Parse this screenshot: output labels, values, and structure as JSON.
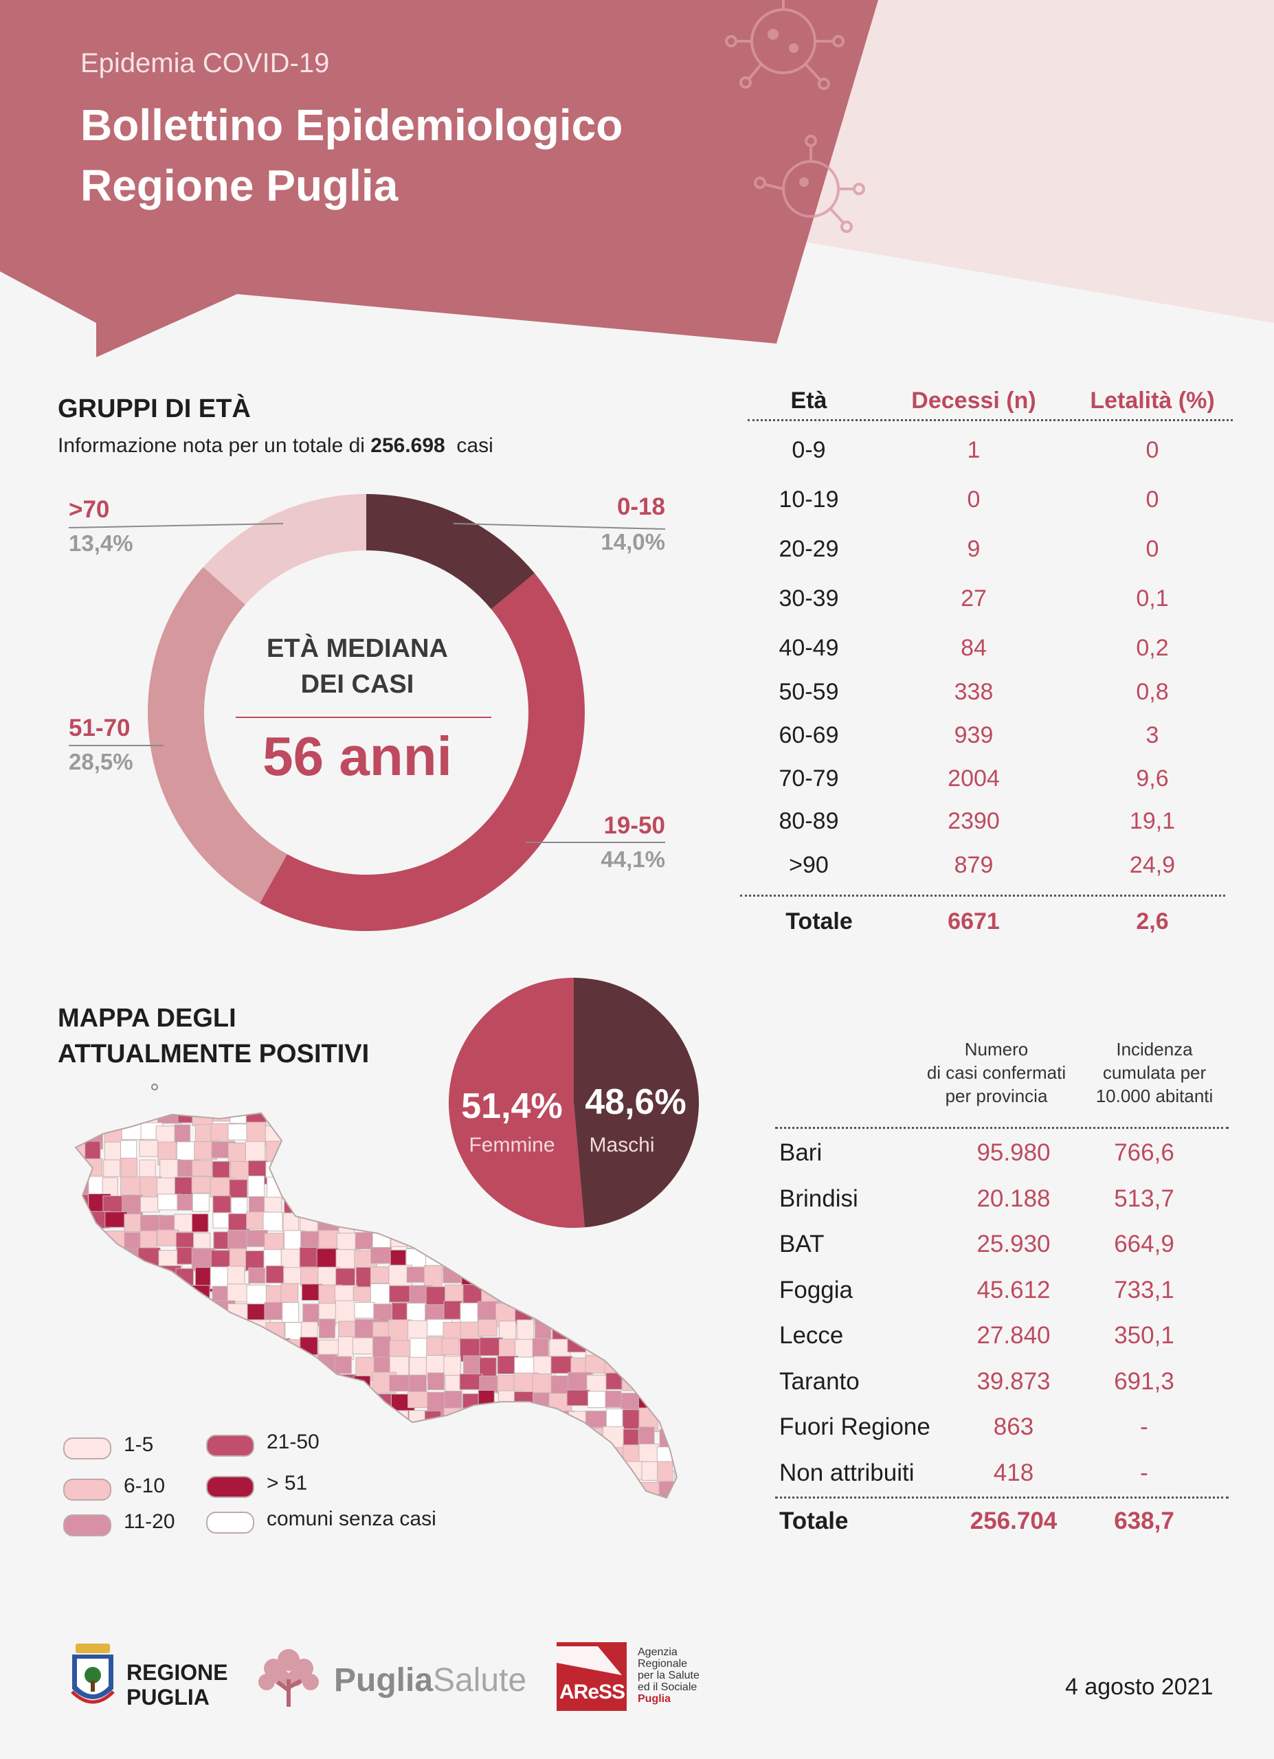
{
  "header": {
    "subtitle": "Epidemia COVID-19",
    "title_line1": "Bollettino Epidemiologico",
    "title_line2": "Regione Puglia"
  },
  "age_section": {
    "title": "GRUPPI DI ETÀ",
    "info_prefix": "Informazione nota per un totale di",
    "info_total": "256.698",
    "info_suffix": "casi",
    "center_title_1": "ETÀ MEDIANA",
    "center_title_2": "DEI CASI",
    "median_value": "56 anni"
  },
  "chart_data": {
    "type": "pie",
    "categories": [
      "0-18",
      "19-50",
      "51-70",
      ">70"
    ],
    "values": [
      14.0,
      44.1,
      28.5,
      13.4
    ],
    "value_labels": [
      "14,0%",
      "44,1%",
      "28,5%",
      "13,4%"
    ],
    "colors": [
      "#5e343a",
      "#bd4a5e",
      "#d4989d",
      "#ecc9cb"
    ]
  },
  "deaths_table": {
    "headers": [
      "Età",
      "Decessi (n)",
      "Letalità (%)"
    ],
    "rows": [
      {
        "age": "0-9",
        "deaths": "1",
        "lethality": "0"
      },
      {
        "age": "10-19",
        "deaths": "0",
        "lethality": "0"
      },
      {
        "age": "20-29",
        "deaths": "9",
        "lethality": "0"
      },
      {
        "age": "30-39",
        "deaths": "27",
        "lethality": "0,1"
      },
      {
        "age": "40-49",
        "deaths": "84",
        "lethality": "0,2"
      },
      {
        "age": "50-59",
        "deaths": "338",
        "lethality": "0,8"
      },
      {
        "age": "60-69",
        "deaths": "939",
        "lethality": "3"
      },
      {
        "age": "70-79",
        "deaths": "2004",
        "lethality": "9,6"
      },
      {
        "age": "80-89",
        "deaths": "2390",
        "lethality": "19,1"
      },
      {
        "age": ">90",
        "deaths": "879",
        "lethality": "24,9"
      }
    ],
    "total": {
      "label": "Totale",
      "deaths": "6671",
      "lethality": "2,6"
    }
  },
  "map_section": {
    "title_1": "MAPPA DEGLI",
    "title_2": "ATTUALMENTE POSITIVI",
    "legend": [
      {
        "label": "1-5",
        "color": "#fde6e3"
      },
      {
        "label": "6-10",
        "color": "#f6c5c8"
      },
      {
        "label": "11-20",
        "color": "#d890a4"
      },
      {
        "label": "21-50",
        "color": "#c14e6c"
      },
      {
        "label": "> 51",
        "color": "#a9173c"
      },
      {
        "label": "comuni senza casi",
        "color": "#ffffff"
      }
    ]
  },
  "gender": {
    "female_pct": "51,4%",
    "female_label": "Femmine",
    "male_pct": "48,6%",
    "male_label": "Maschi",
    "female_value": 51.4,
    "male_value": 48.6,
    "female_color": "#bd4a5e",
    "male_color": "#5e343a"
  },
  "province_table": {
    "head_cases": [
      "Numero",
      "di casi confermati",
      "per provincia"
    ],
    "head_incidence": [
      "Incidenza",
      "cumulata per",
      "10.000 abitanti"
    ],
    "rows": [
      {
        "name": "Bari",
        "cases": "95.980",
        "incidence": "766,6"
      },
      {
        "name": "Brindisi",
        "cases": "20.188",
        "incidence": "513,7"
      },
      {
        "name": "BAT",
        "cases": "25.930",
        "incidence": "664,9"
      },
      {
        "name": "Foggia",
        "cases": "45.612",
        "incidence": "733,1"
      },
      {
        "name": "Lecce",
        "cases": "27.840",
        "incidence": "350,1"
      },
      {
        "name": "Taranto",
        "cases": "39.873",
        "incidence": "691,3"
      },
      {
        "name": "Fuori Regione",
        "cases": "863",
        "incidence": "-"
      },
      {
        "name": "Non attribuiti",
        "cases": "418",
        "incidence": "-"
      }
    ],
    "total": {
      "label": "Totale",
      "cases": "256.704",
      "incidence": "638,7"
    }
  },
  "footer": {
    "regione_1": "REGIONE",
    "regione_2": "PUGLIA",
    "puglia_a": "Puglia",
    "puglia_b": "Salute",
    "aress_logo": "AReSS",
    "aress_text": [
      "Agenzia",
      "Regionale",
      "per la Salute",
      "ed il Sociale",
      "Puglia"
    ],
    "date": "4 agosto 2021"
  }
}
